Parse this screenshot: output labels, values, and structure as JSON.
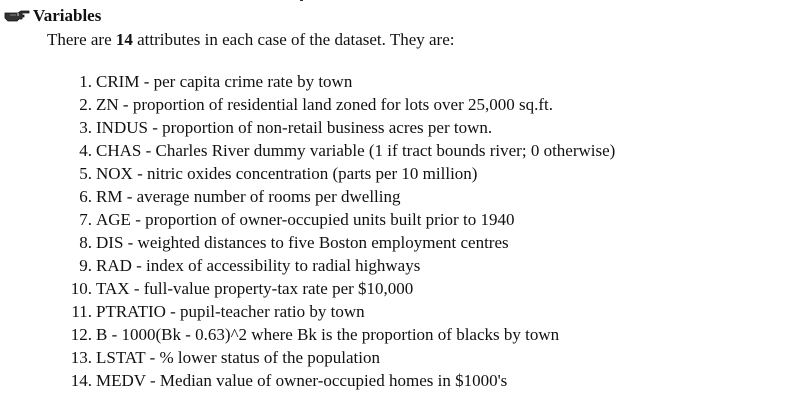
{
  "section": {
    "title": "Variables",
    "icon": "pointing-hand-icon"
  },
  "intro": {
    "before": "There are ",
    "count": "14",
    "after": " attributes in each case of the dataset. They are:"
  },
  "attributes": [
    {
      "num": "1.",
      "text": "CRIM - per capita crime rate by town"
    },
    {
      "num": "2.",
      "text": "ZN - proportion of residential land zoned for lots over 25,000 sq.ft."
    },
    {
      "num": "3.",
      "text": "INDUS - proportion of non-retail business acres per town."
    },
    {
      "num": "4.",
      "text": "CHAS - Charles River dummy variable (1 if tract bounds river; 0 otherwise)"
    },
    {
      "num": "5.",
      "text": "NOX - nitric oxides concentration (parts per 10 million)"
    },
    {
      "num": "6.",
      "text": "RM - average number of rooms per dwelling"
    },
    {
      "num": "7.",
      "text": "AGE - proportion of owner-occupied units built prior to 1940"
    },
    {
      "num": "8.",
      "text": "DIS - weighted distances to five Boston employment centres"
    },
    {
      "num": "9.",
      "text": "RAD - index of accessibility to radial highways"
    },
    {
      "num": "10.",
      "text": "TAX - full-value property-tax rate per $10,000"
    },
    {
      "num": "11.",
      "text": "PTRATIO - pupil-teacher ratio by town"
    },
    {
      "num": "12.",
      "text": "B - 1000(Bk - 0.63)^2 where Bk is the proportion of blacks by town"
    },
    {
      "num": "13.",
      "text": "LSTAT - % lower status of the population"
    },
    {
      "num": "14.",
      "text": "MEDV - Median value of owner-occupied homes in $1000's"
    }
  ]
}
